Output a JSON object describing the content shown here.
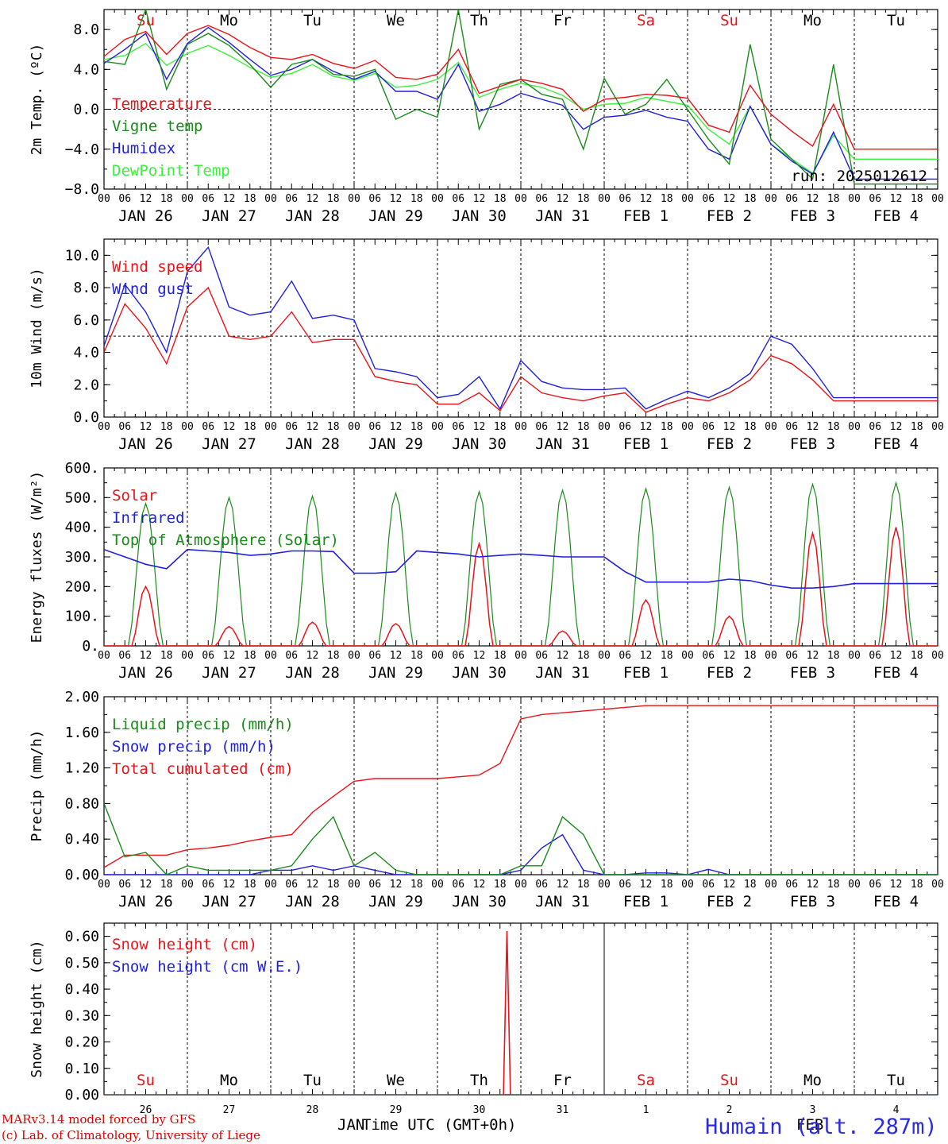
{
  "colors": {
    "red": "#e8141a",
    "green": "#1a8a1a",
    "blue": "#1f1fdc",
    "lightgreen": "#3cf03c",
    "black": "#000000"
  },
  "days": [
    "26",
    "27",
    "28",
    "29",
    "30",
    "31",
    "1",
    "2",
    "3",
    "4"
  ],
  "date_labels": [
    "JAN 26",
    "JAN 27",
    "JAN 28",
    "JAN 29",
    "JAN 30",
    "JAN 31",
    "FEB  1",
    "FEB  2",
    "FEB  3",
    "FEB  4"
  ],
  "dow": [
    {
      "label": "Su",
      "color": "red"
    },
    {
      "label": "Mo",
      "color": "black"
    },
    {
      "label": "Tu",
      "color": "black"
    },
    {
      "label": "We",
      "color": "black"
    },
    {
      "label": "Th",
      "color": "black"
    },
    {
      "label": "Fr",
      "color": "black"
    },
    {
      "label": "Sa",
      "color": "red"
    },
    {
      "label": "Su",
      "color": "red"
    },
    {
      "label": "Mo",
      "color": "black"
    },
    {
      "label": "Tu",
      "color": "black"
    }
  ],
  "hour_labels": [
    "00",
    "06",
    "12",
    "18"
  ],
  "footer": {
    "model": "MARv3.14 model forced by GFS",
    "credit": "(c) Lab. of Climatology, University of Liege",
    "station": "Humain (alt. 287m)",
    "xtitle": "Time UTC (GMT+0h)",
    "month_left": "JAN",
    "month_right": "FEB"
  },
  "chart_data": [
    {
      "id": "temp",
      "type": "line",
      "ylabel": "2m Temp. (ºC)",
      "ylim": [
        -8,
        10
      ],
      "yticks": [
        "8.0",
        "4.0",
        "0.0",
        "−4.0",
        "−8.0"
      ],
      "ytick_values": [
        8,
        4,
        0,
        -4,
        -8
      ],
      "hline": 0,
      "run": "run: 2025012612",
      "x_unit": "hours since JAN 26 00 UTC",
      "x": [
        0,
        6,
        12,
        18,
        24,
        30,
        36,
        42,
        48,
        54,
        60,
        66,
        72,
        78,
        84,
        90,
        96,
        102,
        108,
        114,
        120,
        126,
        132,
        138,
        144,
        150,
        156,
        162,
        168,
        174,
        180,
        186,
        192,
        198,
        204,
        210,
        216,
        222,
        228,
        234,
        240
      ],
      "series": [
        {
          "name": "Temperature",
          "color": "red",
          "values": [
            5.3,
            7.0,
            7.8,
            5.5,
            7.6,
            8.4,
            7.5,
            6.2,
            5.2,
            5.0,
            5.5,
            4.6,
            4.1,
            4.9,
            3.2,
            3.0,
            3.5,
            6.0,
            1.6,
            2.3,
            3.0,
            2.6,
            2.0,
            -0.2,
            1.0,
            1.2,
            1.5,
            1.4,
            1.1,
            -1.6,
            -2.3,
            2.4,
            -0.5,
            -2.2,
            -3.7,
            0.5,
            -4.0,
            -4.0,
            -4.0,
            -4.0,
            -4.0
          ]
        },
        {
          "name": "Vigne temp",
          "color": "green",
          "values": [
            4.8,
            4.5,
            10.0,
            2.0,
            6.5,
            7.6,
            6.4,
            4.5,
            2.2,
            4.5,
            5.0,
            3.5,
            3.3,
            4.0,
            -1.0,
            0.0,
            -0.8,
            10.0,
            -2.0,
            2.5,
            3.0,
            1.5,
            1.0,
            -4.0,
            3.1,
            -0.5,
            0.5,
            3.0,
            0.0,
            -3.0,
            -5.5,
            6.5,
            -3.0,
            -5.0,
            -7.0,
            4.5,
            -7.5,
            -7.5,
            -7.5,
            -7.5,
            -7.5
          ]
        },
        {
          "name": "Humidex",
          "color": "blue",
          "values": [
            4.6,
            6.0,
            7.6,
            3.0,
            6.6,
            8.2,
            6.7,
            5.0,
            3.4,
            4.0,
            5.0,
            3.8,
            3.0,
            3.8,
            1.8,
            1.8,
            1.0,
            4.5,
            -0.2,
            0.5,
            1.6,
            1.0,
            0.4,
            -2.0,
            -0.8,
            -0.6,
            -0.1,
            -0.8,
            -1.2,
            -4.0,
            -5.0,
            0.3,
            -3.5,
            -5.2,
            -6.5,
            -2.3,
            -7.0,
            -7.0,
            -7.0,
            -7.0,
            -7.0
          ]
        },
        {
          "name": "DewPoint Temp",
          "color": "lightgreen",
          "values": [
            5.0,
            5.4,
            6.6,
            4.4,
            5.6,
            6.4,
            5.4,
            4.2,
            3.2,
            3.6,
            4.5,
            3.3,
            2.9,
            3.6,
            2.2,
            2.4,
            3.0,
            4.7,
            1.2,
            2.0,
            2.6,
            2.2,
            1.4,
            0.0,
            0.5,
            0.6,
            1.2,
            0.8,
            0.4,
            -2.0,
            -3.5,
            0.3,
            -3.5,
            -5.0,
            -6.4,
            -2.6,
            -5.0,
            -5.0,
            -5.0,
            -5.0,
            -5.0
          ]
        }
      ]
    },
    {
      "id": "wind",
      "type": "line",
      "ylabel": "10m Wind (m/s)",
      "ylim": [
        0,
        11
      ],
      "yticks": [
        "10.0",
        "8.0",
        "6.0",
        "4.0",
        "2.0",
        "0.0"
      ],
      "ytick_values": [
        10,
        8,
        6,
        4,
        2,
        0
      ],
      "hline": 5,
      "x_unit": "hours since JAN 26 00 UTC",
      "x": [
        0,
        6,
        12,
        18,
        24,
        30,
        36,
        42,
        48,
        54,
        60,
        66,
        72,
        78,
        84,
        90,
        96,
        102,
        108,
        114,
        120,
        126,
        132,
        138,
        144,
        150,
        156,
        162,
        168,
        174,
        180,
        186,
        192,
        198,
        204,
        210,
        216,
        222,
        228,
        234,
        240
      ],
      "series": [
        {
          "name": "Wind speed",
          "color": "red",
          "values": [
            4.0,
            7.0,
            5.5,
            3.3,
            6.8,
            8.0,
            5.0,
            4.8,
            5.0,
            6.5,
            4.6,
            4.8,
            4.8,
            2.5,
            2.2,
            2.0,
            0.8,
            0.8,
            1.5,
            0.4,
            2.5,
            1.5,
            1.2,
            1.0,
            1.3,
            1.5,
            0.3,
            0.8,
            1.2,
            1.0,
            1.5,
            2.3,
            3.8,
            3.3,
            2.3,
            1.0,
            1.0,
            1.0,
            1.0,
            1.0,
            1.0
          ]
        },
        {
          "name": "Wind gust",
          "color": "blue",
          "values": [
            4.4,
            8.2,
            6.5,
            4.0,
            9.0,
            10.5,
            6.8,
            6.3,
            6.5,
            8.4,
            6.1,
            6.3,
            6.0,
            3.0,
            2.8,
            2.5,
            1.2,
            1.4,
            2.5,
            0.5,
            3.5,
            2.2,
            1.8,
            1.7,
            1.7,
            1.8,
            0.5,
            1.1,
            1.6,
            1.2,
            1.8,
            2.7,
            5.0,
            4.5,
            3.0,
            1.2,
            1.2,
            1.2,
            1.2,
            1.2,
            1.2
          ]
        }
      ]
    },
    {
      "id": "flux",
      "type": "line",
      "ylabel": "Energy fluxes (W/m²)",
      "ylim": [
        0,
        600
      ],
      "yticks": [
        "600.",
        "500.",
        "400.",
        "300.",
        "200.",
        "100.",
        "0."
      ],
      "ytick_values": [
        600,
        500,
        400,
        300,
        200,
        100,
        0
      ],
      "x_unit": "hours since JAN 26 00 UTC",
      "solar_peaks": [
        200,
        65,
        80,
        75,
        345,
        50,
        155,
        100,
        380,
        400
      ],
      "toa_peaks": [
        480,
        500,
        505,
        515,
        520,
        525,
        530,
        535,
        545,
        550
      ],
      "series": [
        {
          "name": "Solar",
          "color": "red"
        },
        {
          "name": "Infrared",
          "color": "blue",
          "values": [
            325,
            300,
            275,
            260,
            325,
            320,
            315,
            305,
            310,
            320,
            320,
            318,
            245,
            245,
            250,
            320,
            315,
            310,
            300,
            305,
            310,
            305,
            300,
            300,
            300,
            250,
            215,
            215,
            215,
            215,
            225,
            220,
            205,
            195,
            195,
            200,
            210,
            210,
            210,
            210,
            210
          ]
        },
        {
          "name": "Top of Atmosphere (Solar)",
          "color": "green"
        }
      ]
    },
    {
      "id": "precip",
      "type": "line",
      "ylabel": "Precip (mm/h)",
      "ylim": [
        0,
        2
      ],
      "yticks": [
        "2.00",
        "1.60",
        "1.20",
        "0.80",
        "0.40",
        "0.00"
      ],
      "ytick_values": [
        2.0,
        1.6,
        1.2,
        0.8,
        0.4,
        0.0
      ],
      "x_unit": "hours since JAN 26 00 UTC",
      "x": [
        0,
        6,
        12,
        18,
        24,
        30,
        36,
        42,
        48,
        54,
        60,
        66,
        72,
        78,
        84,
        90,
        96,
        102,
        108,
        114,
        120,
        126,
        132,
        138,
        144,
        150,
        156,
        162,
        168,
        174,
        180,
        186,
        192,
        198,
        204,
        210,
        216,
        222,
        228,
        234,
        240
      ],
      "series": [
        {
          "name": "Liquid precip (mm/h)",
          "color": "green",
          "values": [
            0.8,
            0.2,
            0.25,
            0.0,
            0.1,
            0.05,
            0.05,
            0.05,
            0.05,
            0.1,
            0.4,
            0.65,
            0.1,
            0.25,
            0.05,
            0.0,
            0.0,
            0.0,
            0.0,
            0.0,
            0.1,
            0.1,
            0.65,
            0.45,
            0.0,
            0.0,
            0.0,
            0.0,
            0.0,
            0.0,
            0.0,
            0.0,
            0.0,
            0.0,
            0.0,
            0.0,
            0.0,
            0.0,
            0.0,
            0.0,
            0.0
          ]
        },
        {
          "name": "Snow precip (mm/h)",
          "color": "blue",
          "values": [
            0.0,
            0.0,
            0.0,
            0.0,
            0.0,
            0.0,
            0.0,
            0.0,
            0.05,
            0.05,
            0.1,
            0.05,
            0.1,
            0.05,
            0.0,
            0.0,
            0.0,
            0.0,
            0.0,
            0.0,
            0.05,
            0.3,
            0.45,
            0.05,
            0.0,
            0.0,
            0.02,
            0.02,
            0.0,
            0.06,
            0.0,
            0.0,
            0.0,
            0.0,
            0.0,
            0.0,
            0.0,
            0.0,
            0.0,
            0.0,
            0.0
          ]
        },
        {
          "name": "Total cumulated (cm)",
          "color": "red",
          "values": [
            0.08,
            0.22,
            0.22,
            0.22,
            0.28,
            0.3,
            0.33,
            0.38,
            0.42,
            0.45,
            0.7,
            0.88,
            1.05,
            1.08,
            1.08,
            1.08,
            1.08,
            1.1,
            1.12,
            1.25,
            1.75,
            1.8,
            1.82,
            1.84,
            1.86,
            1.88,
            1.9,
            1.9,
            1.9,
            1.9,
            1.9,
            1.9,
            1.9,
            1.9,
            1.9,
            1.9,
            1.9,
            1.9,
            1.9,
            1.9,
            1.9
          ]
        }
      ]
    },
    {
      "id": "snow",
      "type": "line",
      "ylabel": "Snow height (cm)",
      "ylim": [
        0,
        0.65
      ],
      "yticks": [
        "0.60",
        "0.50",
        "0.40",
        "0.30",
        "0.20",
        "0.10",
        "0.00"
      ],
      "ytick_values": [
        0.6,
        0.5,
        0.4,
        0.3,
        0.2,
        0.1,
        0.0
      ],
      "x_unit": "hours since JAN 26 00 UTC",
      "series": [
        {
          "name": "Snow height (cm)",
          "color": "red",
          "spike_x": 116,
          "spike_y": 0.62
        },
        {
          "name": "Snow height (cm W.E.)",
          "color": "blue"
        }
      ]
    }
  ]
}
